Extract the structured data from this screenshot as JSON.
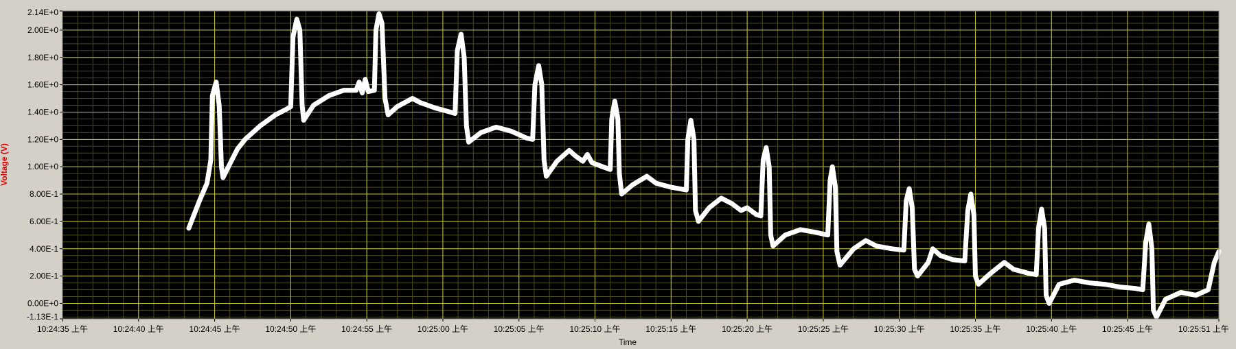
{
  "colors": {
    "frame_bg": "#d4d0c8",
    "plot_bg": "#000000",
    "major_grid": "#c8c832",
    "minor_grid": "#4a4a1a",
    "trace": "#ffffff",
    "ylabel": "#e00000",
    "tick_text": "#000000"
  },
  "chart_data": {
    "type": "line",
    "title": "",
    "xlabel": "Time",
    "ylabel": "Voltage (V)",
    "grid": true,
    "x_unit": "seconds after 10:24:35",
    "xlim": [
      0,
      76
    ],
    "ylim": [
      -0.113,
      2.14
    ],
    "x_ticks": [
      {
        "t": 0,
        "label": "10:24:35 上午"
      },
      {
        "t": 5,
        "label": "10:24:40 上午"
      },
      {
        "t": 10,
        "label": "10:24:45 上午"
      },
      {
        "t": 15,
        "label": "10:24:50 上午"
      },
      {
        "t": 20,
        "label": "10:24:55 上午"
      },
      {
        "t": 25,
        "label": "10:25:00 上午"
      },
      {
        "t": 30,
        "label": "10:25:05 上午"
      },
      {
        "t": 35,
        "label": "10:25:10 上午"
      },
      {
        "t": 40,
        "label": "10:25:15 上午"
      },
      {
        "t": 45,
        "label": "10:25:20 上午"
      },
      {
        "t": 50,
        "label": "10:25:25 上午"
      },
      {
        "t": 55,
        "label": "10:25:30 上午"
      },
      {
        "t": 60,
        "label": "10:25:35 上午"
      },
      {
        "t": 65,
        "label": "10:25:40 上午"
      },
      {
        "t": 70,
        "label": "10:25:45 上午"
      },
      {
        "t": 76,
        "label": "10:25:51 上午"
      }
    ],
    "y_ticks": [
      {
        "v": -0.113,
        "label": "-1.13E-1"
      },
      {
        "v": 0.0,
        "label": "0.00E+0"
      },
      {
        "v": 0.2,
        "label": "2.00E-1"
      },
      {
        "v": 0.4,
        "label": "4.00E-1"
      },
      {
        "v": 0.6,
        "label": "6.00E-1"
      },
      {
        "v": 0.8,
        "label": "8.00E-1"
      },
      {
        "v": 1.0,
        "label": "1.00E+0"
      },
      {
        "v": 1.2,
        "label": "1.20E+0"
      },
      {
        "v": 1.4,
        "label": "1.40E+0"
      },
      {
        "v": 1.6,
        "label": "1.60E+0"
      },
      {
        "v": 1.8,
        "label": "1.80E+0"
      },
      {
        "v": 2.0,
        "label": "2.00E+0"
      },
      {
        "v": 2.14,
        "label": "2.14E+0"
      }
    ],
    "series": [
      {
        "points": [
          [
            8.3,
            0.55
          ],
          [
            9.0,
            0.75
          ],
          [
            9.5,
            0.88
          ],
          [
            9.75,
            1.05
          ],
          [
            9.85,
            1.52
          ],
          [
            10.1,
            1.62
          ],
          [
            10.3,
            1.45
          ],
          [
            10.45,
            1.0
          ],
          [
            10.55,
            0.92
          ],
          [
            11.0,
            1.02
          ],
          [
            11.5,
            1.13
          ],
          [
            12.0,
            1.2
          ],
          [
            13.0,
            1.3
          ],
          [
            14.0,
            1.38
          ],
          [
            14.7,
            1.42
          ],
          [
            15.0,
            1.44
          ],
          [
            15.15,
            1.95
          ],
          [
            15.4,
            2.08
          ],
          [
            15.6,
            2.0
          ],
          [
            15.75,
            1.45
          ],
          [
            15.85,
            1.34
          ],
          [
            16.5,
            1.45
          ],
          [
            17.5,
            1.52
          ],
          [
            18.5,
            1.56
          ],
          [
            19.3,
            1.56
          ],
          [
            19.5,
            1.62
          ],
          [
            19.7,
            1.54
          ],
          [
            19.9,
            1.64
          ],
          [
            20.1,
            1.55
          ],
          [
            20.5,
            1.56
          ],
          [
            20.6,
            2.0
          ],
          [
            20.8,
            2.12
          ],
          [
            21.0,
            2.05
          ],
          [
            21.2,
            1.5
          ],
          [
            21.4,
            1.38
          ],
          [
            22.0,
            1.44
          ],
          [
            22.5,
            1.47
          ],
          [
            23.0,
            1.5
          ],
          [
            23.5,
            1.47
          ],
          [
            24.5,
            1.43
          ],
          [
            25.5,
            1.4
          ],
          [
            25.8,
            1.39
          ],
          [
            25.95,
            1.85
          ],
          [
            26.2,
            1.97
          ],
          [
            26.4,
            1.8
          ],
          [
            26.55,
            1.3
          ],
          [
            26.7,
            1.18
          ],
          [
            27.5,
            1.25
          ],
          [
            28.5,
            1.29
          ],
          [
            29.5,
            1.26
          ],
          [
            30.5,
            1.21
          ],
          [
            30.9,
            1.2
          ],
          [
            31.05,
            1.6
          ],
          [
            31.3,
            1.74
          ],
          [
            31.5,
            1.6
          ],
          [
            31.65,
            1.05
          ],
          [
            31.8,
            0.93
          ],
          [
            32.5,
            1.04
          ],
          [
            33.3,
            1.12
          ],
          [
            33.7,
            1.08
          ],
          [
            34.2,
            1.04
          ],
          [
            34.5,
            1.09
          ],
          [
            34.8,
            1.03
          ],
          [
            35.5,
            1.0
          ],
          [
            36.0,
            0.98
          ],
          [
            36.1,
            1.35
          ],
          [
            36.3,
            1.48
          ],
          [
            36.5,
            1.35
          ],
          [
            36.6,
            0.95
          ],
          [
            36.75,
            0.8
          ],
          [
            37.5,
            0.87
          ],
          [
            38.4,
            0.93
          ],
          [
            39.0,
            0.88
          ],
          [
            40.0,
            0.85
          ],
          [
            41.0,
            0.83
          ],
          [
            41.1,
            1.2
          ],
          [
            41.3,
            1.34
          ],
          [
            41.5,
            1.2
          ],
          [
            41.6,
            0.68
          ],
          [
            41.8,
            0.6
          ],
          [
            42.5,
            0.7
          ],
          [
            43.3,
            0.77
          ],
          [
            44.0,
            0.73
          ],
          [
            44.6,
            0.68
          ],
          [
            45.0,
            0.7
          ],
          [
            45.6,
            0.65
          ],
          [
            45.9,
            0.64
          ],
          [
            46.05,
            1.05
          ],
          [
            46.25,
            1.14
          ],
          [
            46.45,
            1.0
          ],
          [
            46.55,
            0.5
          ],
          [
            46.7,
            0.42
          ],
          [
            47.5,
            0.5
          ],
          [
            48.5,
            0.54
          ],
          [
            49.5,
            0.52
          ],
          [
            50.3,
            0.5
          ],
          [
            50.45,
            0.9
          ],
          [
            50.6,
            1.0
          ],
          [
            50.8,
            0.85
          ],
          [
            50.9,
            0.38
          ],
          [
            51.1,
            0.28
          ],
          [
            52.0,
            0.4
          ],
          [
            52.8,
            0.46
          ],
          [
            53.5,
            0.42
          ],
          [
            54.5,
            0.4
          ],
          [
            55.3,
            0.39
          ],
          [
            55.45,
            0.75
          ],
          [
            55.65,
            0.84
          ],
          [
            55.85,
            0.7
          ],
          [
            56.0,
            0.25
          ],
          [
            56.2,
            0.2
          ],
          [
            56.9,
            0.3
          ],
          [
            57.2,
            0.4
          ],
          [
            57.7,
            0.35
          ],
          [
            58.5,
            0.32
          ],
          [
            59.3,
            0.31
          ],
          [
            59.5,
            0.68
          ],
          [
            59.7,
            0.8
          ],
          [
            59.9,
            0.65
          ],
          [
            60.0,
            0.2
          ],
          [
            60.2,
            0.14
          ],
          [
            61.0,
            0.22
          ],
          [
            61.9,
            0.3
          ],
          [
            62.5,
            0.25
          ],
          [
            63.5,
            0.22
          ],
          [
            64.0,
            0.21
          ],
          [
            64.15,
            0.55
          ],
          [
            64.35,
            0.69
          ],
          [
            64.55,
            0.55
          ],
          [
            64.65,
            0.06
          ],
          [
            64.85,
            0.0
          ],
          [
            65.5,
            0.14
          ],
          [
            66.5,
            0.17
          ],
          [
            67.5,
            0.15
          ],
          [
            68.5,
            0.14
          ],
          [
            69.5,
            0.12
          ],
          [
            70.5,
            0.11
          ],
          [
            71.0,
            0.1
          ],
          [
            71.2,
            0.45
          ],
          [
            71.4,
            0.58
          ],
          [
            71.6,
            0.4
          ],
          [
            71.7,
            -0.05
          ],
          [
            71.9,
            -0.1
          ],
          [
            72.5,
            0.03
          ],
          [
            73.5,
            0.08
          ],
          [
            74.5,
            0.06
          ],
          [
            75.3,
            0.1
          ],
          [
            75.7,
            0.3
          ],
          [
            76.0,
            0.38
          ]
        ]
      }
    ]
  }
}
